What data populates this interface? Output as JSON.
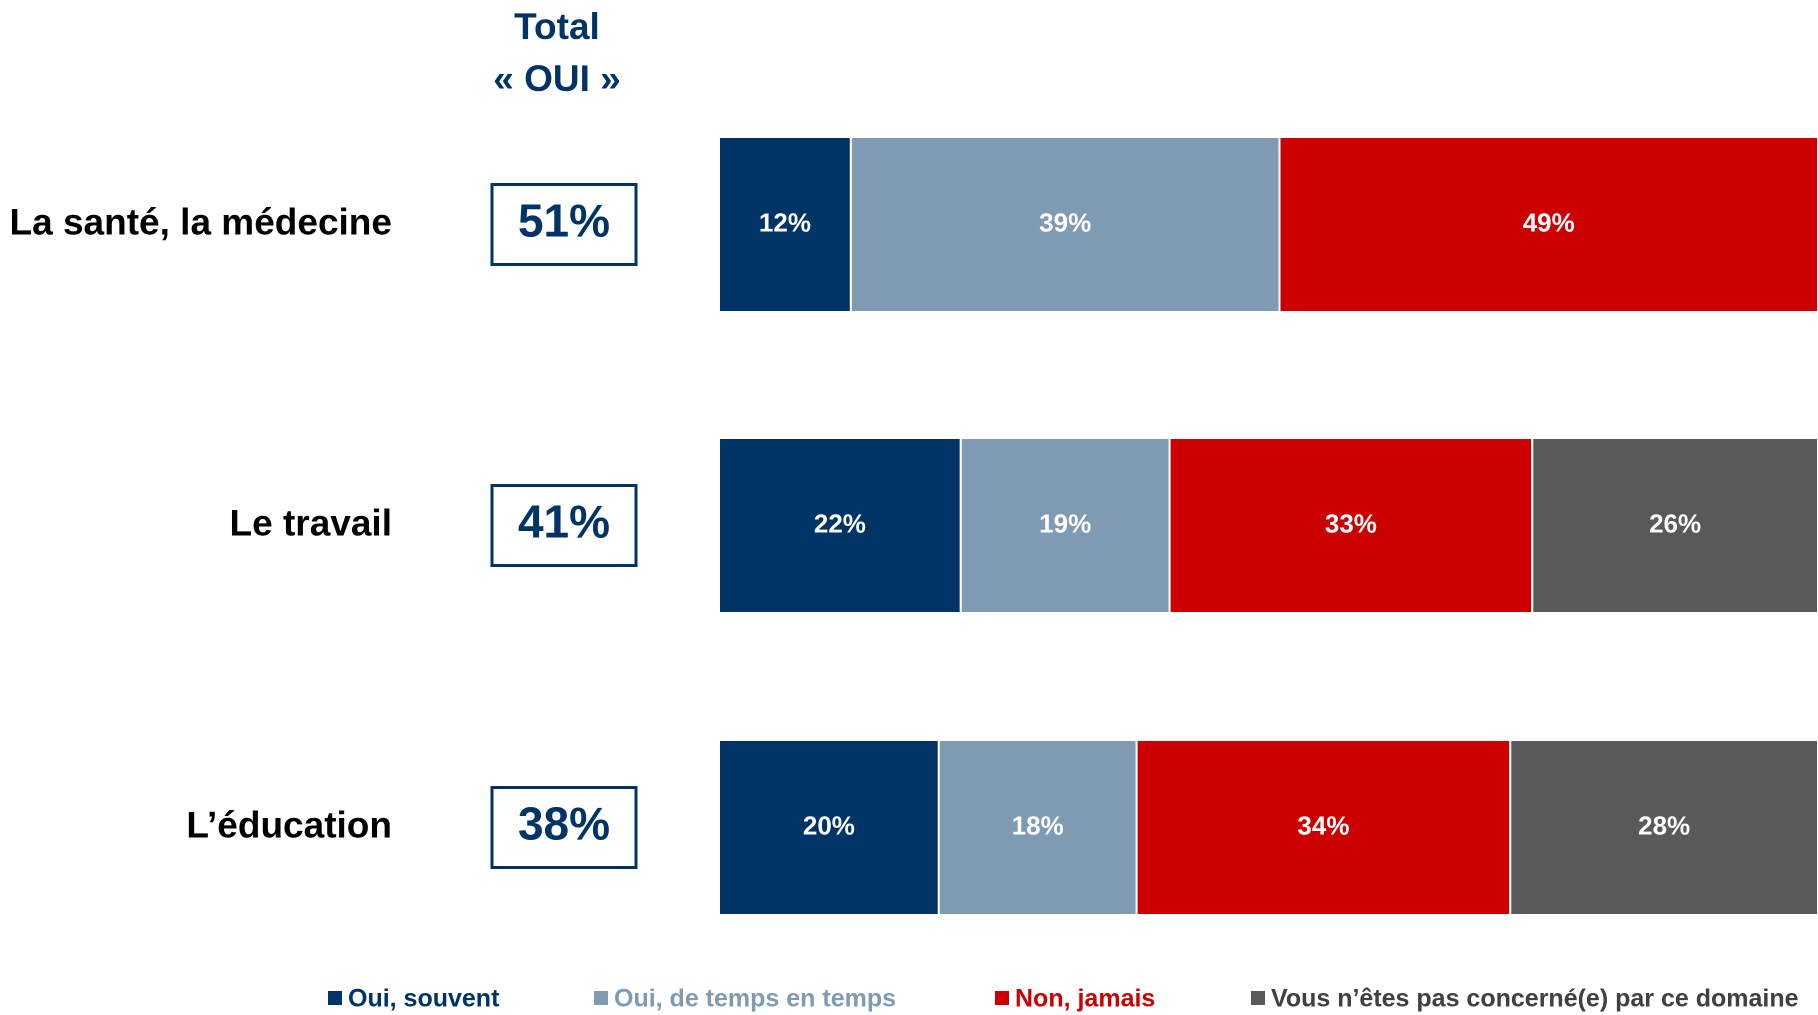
{
  "chart_data": {
    "type": "bar",
    "orientation": "horizontal",
    "stacked": true,
    "total_header": [
      "Total",
      "« OUI »"
    ],
    "totals": {
      "values": [
        51,
        41,
        38
      ],
      "value_labels": [
        "51%",
        "41%",
        "38%"
      ],
      "color": "#003366"
    },
    "categories": [
      "La santé, la médecine",
      "Le travail",
      "L’éducation"
    ],
    "xlim": [
      0,
      100
    ],
    "series": [
      {
        "name": "Oui, souvent",
        "color": "#003366",
        "values": [
          12,
          22,
          20
        ],
        "value_labels": [
          "12%",
          "22%",
          "20%"
        ]
      },
      {
        "name": "Oui, de temps en temps",
        "color": "#7f9ab3",
        "values": [
          39,
          19,
          18
        ],
        "value_labels": [
          "39%",
          "19%",
          "18%"
        ]
      },
      {
        "name": "Non, jamais",
        "color": "#cc0000",
        "values": [
          49,
          33,
          34
        ],
        "value_labels": [
          "49%",
          "33%",
          "34%"
        ]
      },
      {
        "name": "Vous n’êtes pas concerné(e) par ce domaine",
        "color": "#595959",
        "values": [
          null,
          26,
          28
        ],
        "value_labels": [
          null,
          "26%",
          "28%"
        ]
      }
    ]
  }
}
